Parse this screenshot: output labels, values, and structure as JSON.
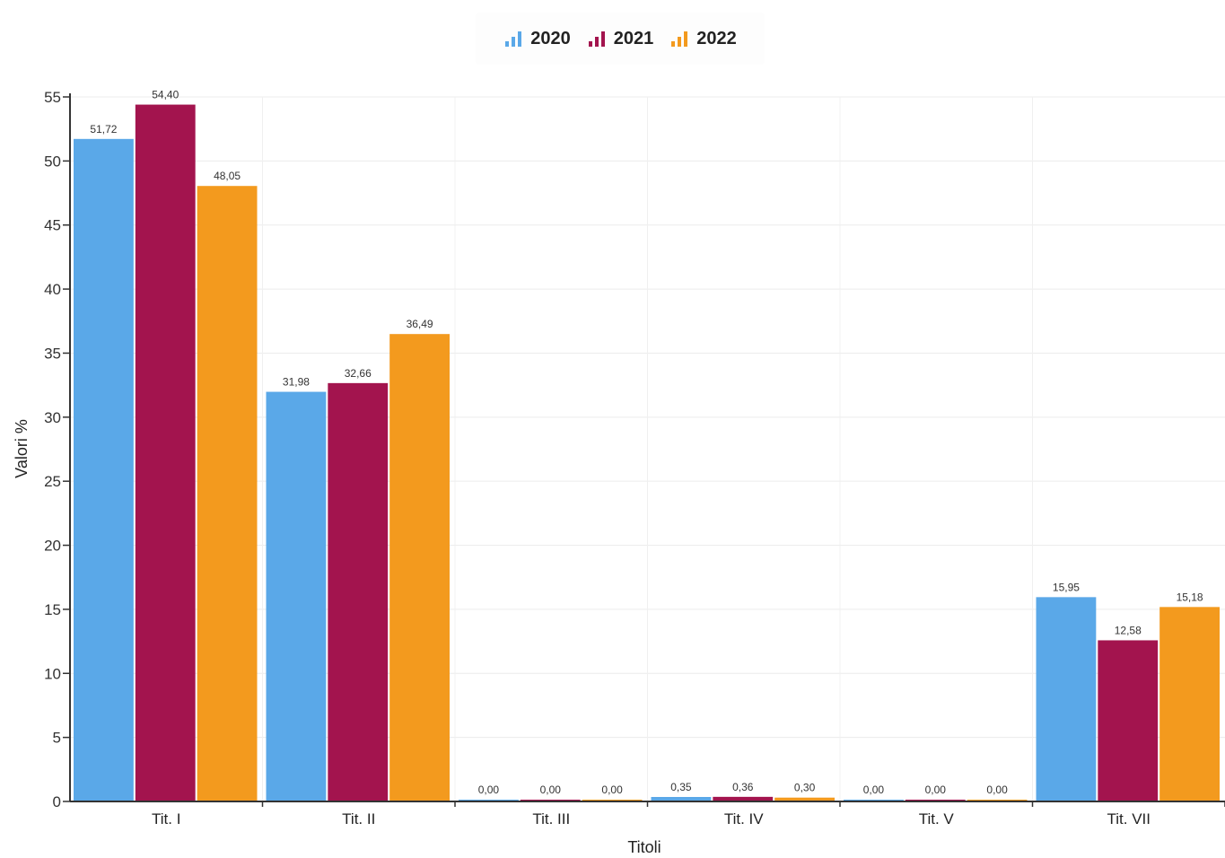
{
  "chart_data": {
    "type": "bar",
    "xlabel": "Titoli",
    "ylabel": "Valori %",
    "ylim": [
      0,
      55
    ],
    "yticks": [
      0,
      5,
      10,
      15,
      20,
      25,
      30,
      35,
      40,
      45,
      50,
      55
    ],
    "categories": [
      "Tit. I",
      "Tit. II",
      "Tit. III",
      "Tit. IV",
      "Tit. V",
      "Tit. VII"
    ],
    "series": [
      {
        "name": "2020",
        "color": "#5aa8e8",
        "values": [
          51.72,
          31.98,
          0.0,
          0.35,
          0.0,
          15.95
        ],
        "labels": [
          "51,72",
          "31,98",
          "0,00",
          "0,35",
          "0,00",
          "15,95"
        ]
      },
      {
        "name": "2021",
        "color": "#a3144e",
        "values": [
          54.4,
          32.66,
          0.0,
          0.36,
          0.0,
          12.58
        ],
        "labels": [
          "54,40",
          "32,66",
          "0,00",
          "0,36",
          "0,00",
          "12,58"
        ]
      },
      {
        "name": "2022",
        "color": "#f39a1e",
        "values": [
          48.05,
          36.49,
          0.0,
          0.3,
          0.0,
          15.18
        ],
        "labels": [
          "48,05",
          "36,49",
          "0,00",
          "0,30",
          "0,00",
          "15,18"
        ]
      }
    ],
    "legend_position": "top-center",
    "grid": true
  },
  "legend": {
    "items": [
      {
        "label": "2020",
        "icon": "bar-chart-icon",
        "color": "#5aa8e8"
      },
      {
        "label": "2021",
        "icon": "bar-chart-icon",
        "color": "#a3144e"
      },
      {
        "label": "2022",
        "icon": "bar-chart-icon",
        "color": "#f39a1e"
      }
    ]
  }
}
